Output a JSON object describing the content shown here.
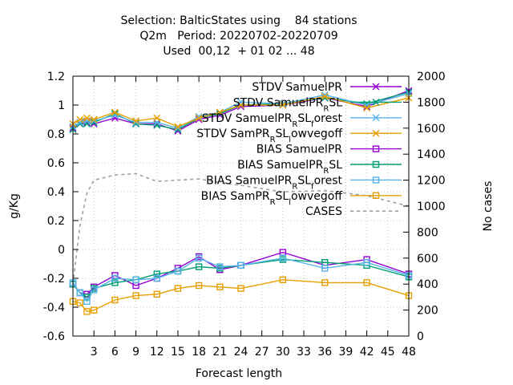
{
  "chart_data": {
    "type": "line",
    "title_lines": [
      "Selection: BalticStates using    84 stations",
      "Q2m   Period: 20220702-20220709",
      "Used  00,12  + 01 02 ... 48"
    ],
    "xlabel": "Forecast length",
    "ylabel": "g/Kg",
    "y2label": "No cases",
    "xlim": [
      0,
      48
    ],
    "ylim": [
      -0.6,
      1.2
    ],
    "y2lim": [
      0,
      2000
    ],
    "x_ticks": [
      3,
      6,
      9,
      12,
      15,
      18,
      21,
      24,
      27,
      30,
      33,
      36,
      39,
      42,
      45,
      48
    ],
    "y_ticks": [
      -0.6,
      -0.4,
      -0.2,
      0,
      0.2,
      0.4,
      0.6,
      0.8,
      1,
      1.2
    ],
    "y_tick_labels": [
      "-0.6",
      "-0.4",
      "-0.2",
      "0",
      "0.2",
      "0.4",
      "0.6",
      "0.8",
      "1",
      "1.2"
    ],
    "y2_ticks": [
      0,
      200,
      400,
      600,
      800,
      1000,
      1200,
      1400,
      1600,
      1800,
      2000
    ],
    "grid": true,
    "legend_position": "top-right",
    "series": [
      {
        "name": "STDV SamuelPR",
        "color": "#9400d3",
        "marker": "x",
        "axis": "y",
        "x": [
          0,
          1,
          2,
          3,
          6,
          9,
          12,
          15,
          18,
          21,
          24,
          30,
          36,
          42,
          48
        ],
        "y": [
          0.84,
          0.87,
          0.88,
          0.87,
          0.91,
          0.87,
          0.87,
          0.82,
          0.9,
          0.93,
          0.99,
          1.0,
          1.05,
          0.99,
          1.1
        ]
      },
      {
        "name": "STDV SamuelPR_RSL",
        "color": "#009e73",
        "marker": "x",
        "axis": "y",
        "x": [
          0,
          1,
          2,
          3,
          6,
          9,
          12,
          15,
          18,
          21,
          24,
          30,
          36,
          42,
          48
        ],
        "y": [
          0.83,
          0.87,
          0.87,
          0.88,
          0.94,
          0.87,
          0.86,
          0.83,
          0.91,
          0.94,
          1.0,
          1.01,
          1.05,
          1.01,
          1.09
        ]
      },
      {
        "name": "STDV SamuelPR_RSL_forest",
        "color": "#56b4e9",
        "marker": "x",
        "axis": "y",
        "x": [
          0,
          1,
          2,
          3,
          6,
          9,
          12,
          15,
          18,
          21,
          24,
          30,
          36,
          42,
          48
        ],
        "y": [
          0.85,
          0.88,
          0.89,
          0.89,
          0.93,
          0.88,
          0.88,
          0.84,
          0.92,
          0.95,
          1.02,
          1.01,
          1.07,
          1.0,
          1.08
        ]
      },
      {
        "name": "STDV SamPR_RSL_lowvegoff",
        "color": "#e69f00",
        "marker": "x",
        "axis": "y",
        "x": [
          0,
          1,
          2,
          3,
          6,
          9,
          12,
          15,
          18,
          21,
          24,
          30,
          36,
          42,
          48
        ],
        "y": [
          0.87,
          0.9,
          0.91,
          0.9,
          0.95,
          0.89,
          0.91,
          0.85,
          0.91,
          0.95,
          1.0,
          1.0,
          1.06,
          0.98,
          1.05
        ]
      },
      {
        "name": "BIAS SamuelPR",
        "color": "#9400d3",
        "marker": "square",
        "axis": "y",
        "x": [
          0,
          1,
          2,
          3,
          6,
          9,
          12,
          15,
          18,
          21,
          24,
          30,
          36,
          42,
          48
        ],
        "y": [
          -0.24,
          -0.3,
          -0.31,
          -0.26,
          -0.18,
          -0.25,
          -0.2,
          -0.13,
          -0.05,
          -0.14,
          -0.11,
          -0.02,
          -0.11,
          -0.07,
          -0.17
        ]
      },
      {
        "name": "BIAS SamuelPR_RSL",
        "color": "#009e73",
        "marker": "square",
        "axis": "y",
        "x": [
          0,
          1,
          2,
          3,
          6,
          9,
          12,
          15,
          18,
          21,
          24,
          30,
          36,
          42,
          48
        ],
        "y": [
          -0.24,
          -0.3,
          -0.33,
          -0.27,
          -0.23,
          -0.21,
          -0.17,
          -0.15,
          -0.12,
          -0.13,
          -0.11,
          -0.07,
          -0.09,
          -0.11,
          -0.19
        ]
      },
      {
        "name": "BIAS SamuelPR_RSL_forest",
        "color": "#56b4e9",
        "marker": "square",
        "axis": "y",
        "x": [
          0,
          1,
          2,
          3,
          6,
          9,
          12,
          15,
          18,
          21,
          24,
          30,
          36,
          42,
          48
        ],
        "y": [
          -0.23,
          -0.3,
          -0.36,
          -0.28,
          -0.2,
          -0.21,
          -0.2,
          -0.15,
          -0.06,
          -0.12,
          -0.11,
          -0.06,
          -0.13,
          -0.09,
          -0.18
        ]
      },
      {
        "name": "BIAS SamPR_RSL_lowvegoff",
        "color": "#e69f00",
        "marker": "square",
        "axis": "y",
        "x": [
          0,
          1,
          2,
          3,
          6,
          9,
          12,
          15,
          18,
          21,
          24,
          30,
          36,
          42,
          48
        ],
        "y": [
          -0.36,
          -0.37,
          -0.43,
          -0.42,
          -0.35,
          -0.32,
          -0.31,
          -0.27,
          -0.25,
          -0.26,
          -0.27,
          -0.21,
          -0.23,
          -0.23,
          -0.32
        ]
      },
      {
        "name": "CASES",
        "color": "#a0a0a0",
        "marker": "none",
        "dash": true,
        "axis": "y2",
        "x": [
          0,
          1,
          2,
          3,
          6,
          9,
          12,
          15,
          18,
          21,
          24,
          30,
          36,
          42,
          48
        ],
        "y": [
          400,
          850,
          1100,
          1200,
          1240,
          1250,
          1190,
          1200,
          1210,
          1180,
          1160,
          1110,
          1120,
          1080,
          1000
        ]
      }
    ],
    "legend_entries": [
      {
        "label": "STDV SamuelPR",
        "color": "#9400d3",
        "marker": "x"
      },
      {
        "label": "STDV SamuelPR",
        "sub": "R",
        "tail": "SL",
        "color": "#009e73",
        "marker": "x"
      },
      {
        "label": "STDV SamuelPR",
        "sub": "R",
        "mid": "SL",
        "sub2": "f",
        "tail": "orest",
        "color": "#56b4e9",
        "marker": "x"
      },
      {
        "label": "STDV SamPR",
        "sub": "R",
        "mid": "SL",
        "sub2": "l",
        "tail": "owvegoff",
        "color": "#e69f00",
        "marker": "x"
      },
      {
        "label": "BIAS SamuelPR",
        "color": "#9400d3",
        "marker": "square"
      },
      {
        "label": "BIAS SamuelPR",
        "sub": "R",
        "tail": "SL",
        "color": "#009e73",
        "marker": "square"
      },
      {
        "label": "BIAS SamuelPR",
        "sub": "R",
        "mid": "SL",
        "sub2": "f",
        "tail": "orest",
        "color": "#56b4e9",
        "marker": "square"
      },
      {
        "label": "BIAS SamPR",
        "sub": "R",
        "mid": "SL",
        "sub2": "l",
        "tail": "owvegoff",
        "color": "#e69f00",
        "marker": "square"
      },
      {
        "label": "CASES",
        "color": "#a0a0a0",
        "marker": "none",
        "dash": true
      }
    ]
  }
}
